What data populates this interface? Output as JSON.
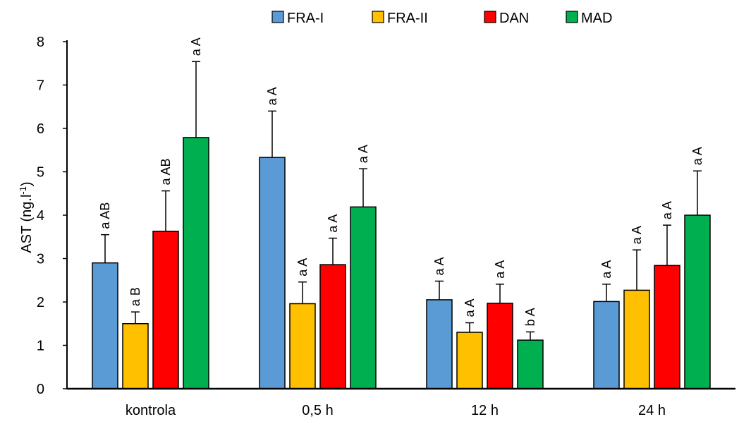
{
  "chart_data": {
    "type": "bar",
    "title": "",
    "xlabel": "",
    "ylabel": "AST (ng.l-1)",
    "ylabel_main": "AST (ng.l",
    "ylabel_sup": "-1",
    "ylabel_tail": ")",
    "ylim": [
      0,
      8
    ],
    "yticks": [
      "0",
      "1",
      "2",
      "3",
      "4",
      "5",
      "6",
      "7",
      "8"
    ],
    "legend_position": "top-center",
    "grid": false,
    "categories": [
      "kontrola",
      "0,5 h",
      "12 h",
      "24 h"
    ],
    "series": [
      {
        "name": "FRA-I",
        "color": "#5B9BD5",
        "values": [
          2.9,
          5.33,
          2.05,
          2.01
        ],
        "errors": [
          0.65,
          1.07,
          0.43,
          0.4
        ],
        "labels": [
          "a AB",
          "a A",
          "a A",
          "a A"
        ]
      },
      {
        "name": "FRA-II",
        "color": "#FFC000",
        "values": [
          1.5,
          1.96,
          1.3,
          2.27
        ],
        "errors": [
          0.27,
          0.5,
          0.22,
          0.93
        ],
        "labels": [
          "a B",
          "a A",
          "a A",
          "a A"
        ]
      },
      {
        "name": "DAN",
        "color": "#FF0000",
        "values": [
          3.63,
          2.86,
          1.97,
          2.84
        ],
        "errors": [
          0.93,
          0.61,
          0.44,
          0.93
        ],
        "labels": [
          "a AB",
          "a A",
          "a A",
          "a A"
        ]
      },
      {
        "name": "MAD",
        "color": "#00B050",
        "values": [
          5.79,
          4.19,
          1.12,
          4.0
        ],
        "errors": [
          1.75,
          0.88,
          0.19,
          1.02
        ],
        "labels": [
          "a A",
          "a A",
          "b A",
          "a A"
        ]
      }
    ]
  }
}
